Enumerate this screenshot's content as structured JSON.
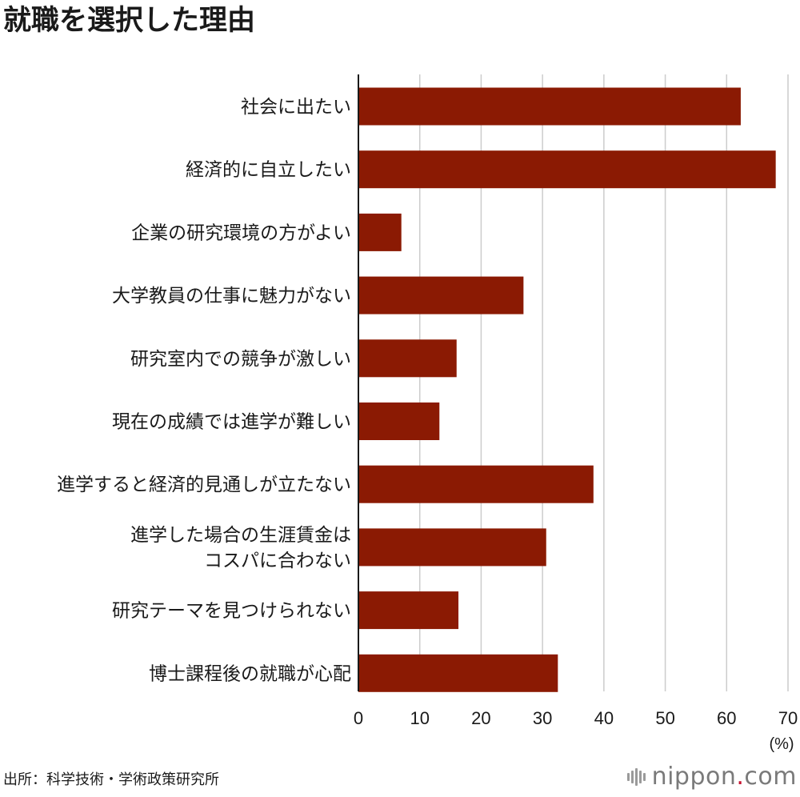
{
  "title": "就職を選択した理由",
  "source": "出所：科学技術・学術政策研究所",
  "brand": {
    "prefix": "nippon",
    "dot": ".",
    "suffix": "com"
  },
  "colors": {
    "bar": "#8b1a03",
    "grid": "#cccccc",
    "axis": "#1a1a1a"
  },
  "chart_data": {
    "type": "bar",
    "orientation": "horizontal",
    "title": "就職を選択した理由",
    "unit": "(%)",
    "xlim": [
      0,
      70
    ],
    "ticks": [
      0,
      10,
      20,
      30,
      40,
      50,
      60,
      70
    ],
    "grid": true,
    "categories": [
      [
        "社会に出たい"
      ],
      [
        "経済的に自立したい"
      ],
      [
        "企業の研究環境の方がよい"
      ],
      [
        "大学教員の仕事に魅力がない"
      ],
      [
        "研究室内での競争が激しい"
      ],
      [
        "現在の成績では進学が難しい"
      ],
      [
        "進学すると経済的見通しが立たない"
      ],
      [
        "進学した場合の生涯賃金は",
        "コスパに合わない"
      ],
      [
        "研究テーマを見つけられない"
      ],
      [
        "博士課程後の就職が心配"
      ]
    ],
    "values": [
      62.3,
      68.0,
      7.0,
      26.9,
      16.0,
      13.2,
      38.3,
      30.6,
      16.3,
      32.5
    ]
  }
}
